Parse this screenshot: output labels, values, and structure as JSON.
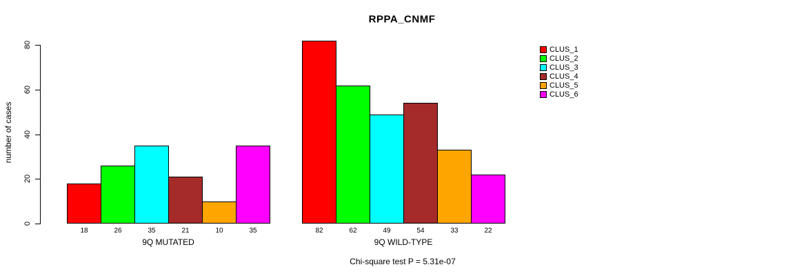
{
  "page": {
    "background": "#FFFFFF",
    "text_color": "#000000"
  },
  "chart_data": {
    "type": "bar",
    "title": "RPPA_CNMF",
    "xlabel": "",
    "ylabel": "number of cases",
    "ylim": [
      0,
      84
    ],
    "yticks": [
      0,
      20,
      40,
      60,
      80
    ],
    "grid": false,
    "bar_border_color": "#000000",
    "value_labels_shown": true,
    "legend_position": "right",
    "legend": [
      {
        "label": "CLUS_1",
        "color": "#FF0000"
      },
      {
        "label": "CLUS_2",
        "color": "#00FF00"
      },
      {
        "label": "CLUS_3",
        "color": "#00FFFF"
      },
      {
        "label": "CLUS_4",
        "color": "#A52A2A"
      },
      {
        "label": "CLUS_5",
        "color": "#FFA500"
      },
      {
        "label": "CLUS_6",
        "color": "#FF00FF"
      }
    ],
    "groups": [
      {
        "label": "9Q MUTATED",
        "values": [
          18,
          26,
          35,
          21,
          10,
          35
        ]
      },
      {
        "label": "9Q WILD-TYPE",
        "values": [
          82,
          62,
          49,
          54,
          33,
          22
        ]
      }
    ],
    "annotation": "Chi-square test P = 5.31e-07"
  }
}
